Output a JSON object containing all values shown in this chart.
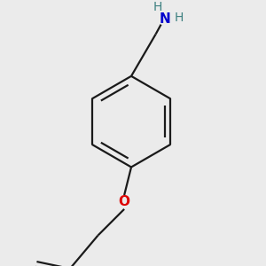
{
  "bg_color": "#ebebeb",
  "bond_color": "#1a1a1a",
  "N_color": "#0000cc",
  "O_color": "#dd0000",
  "H_color": "#3d8080",
  "bond_width": 1.6,
  "font_size_N": 11,
  "font_size_H": 10,
  "font_size_O": 11,
  "canvas_xlim": [
    0,
    300
  ],
  "canvas_ylim": [
    0,
    300
  ]
}
